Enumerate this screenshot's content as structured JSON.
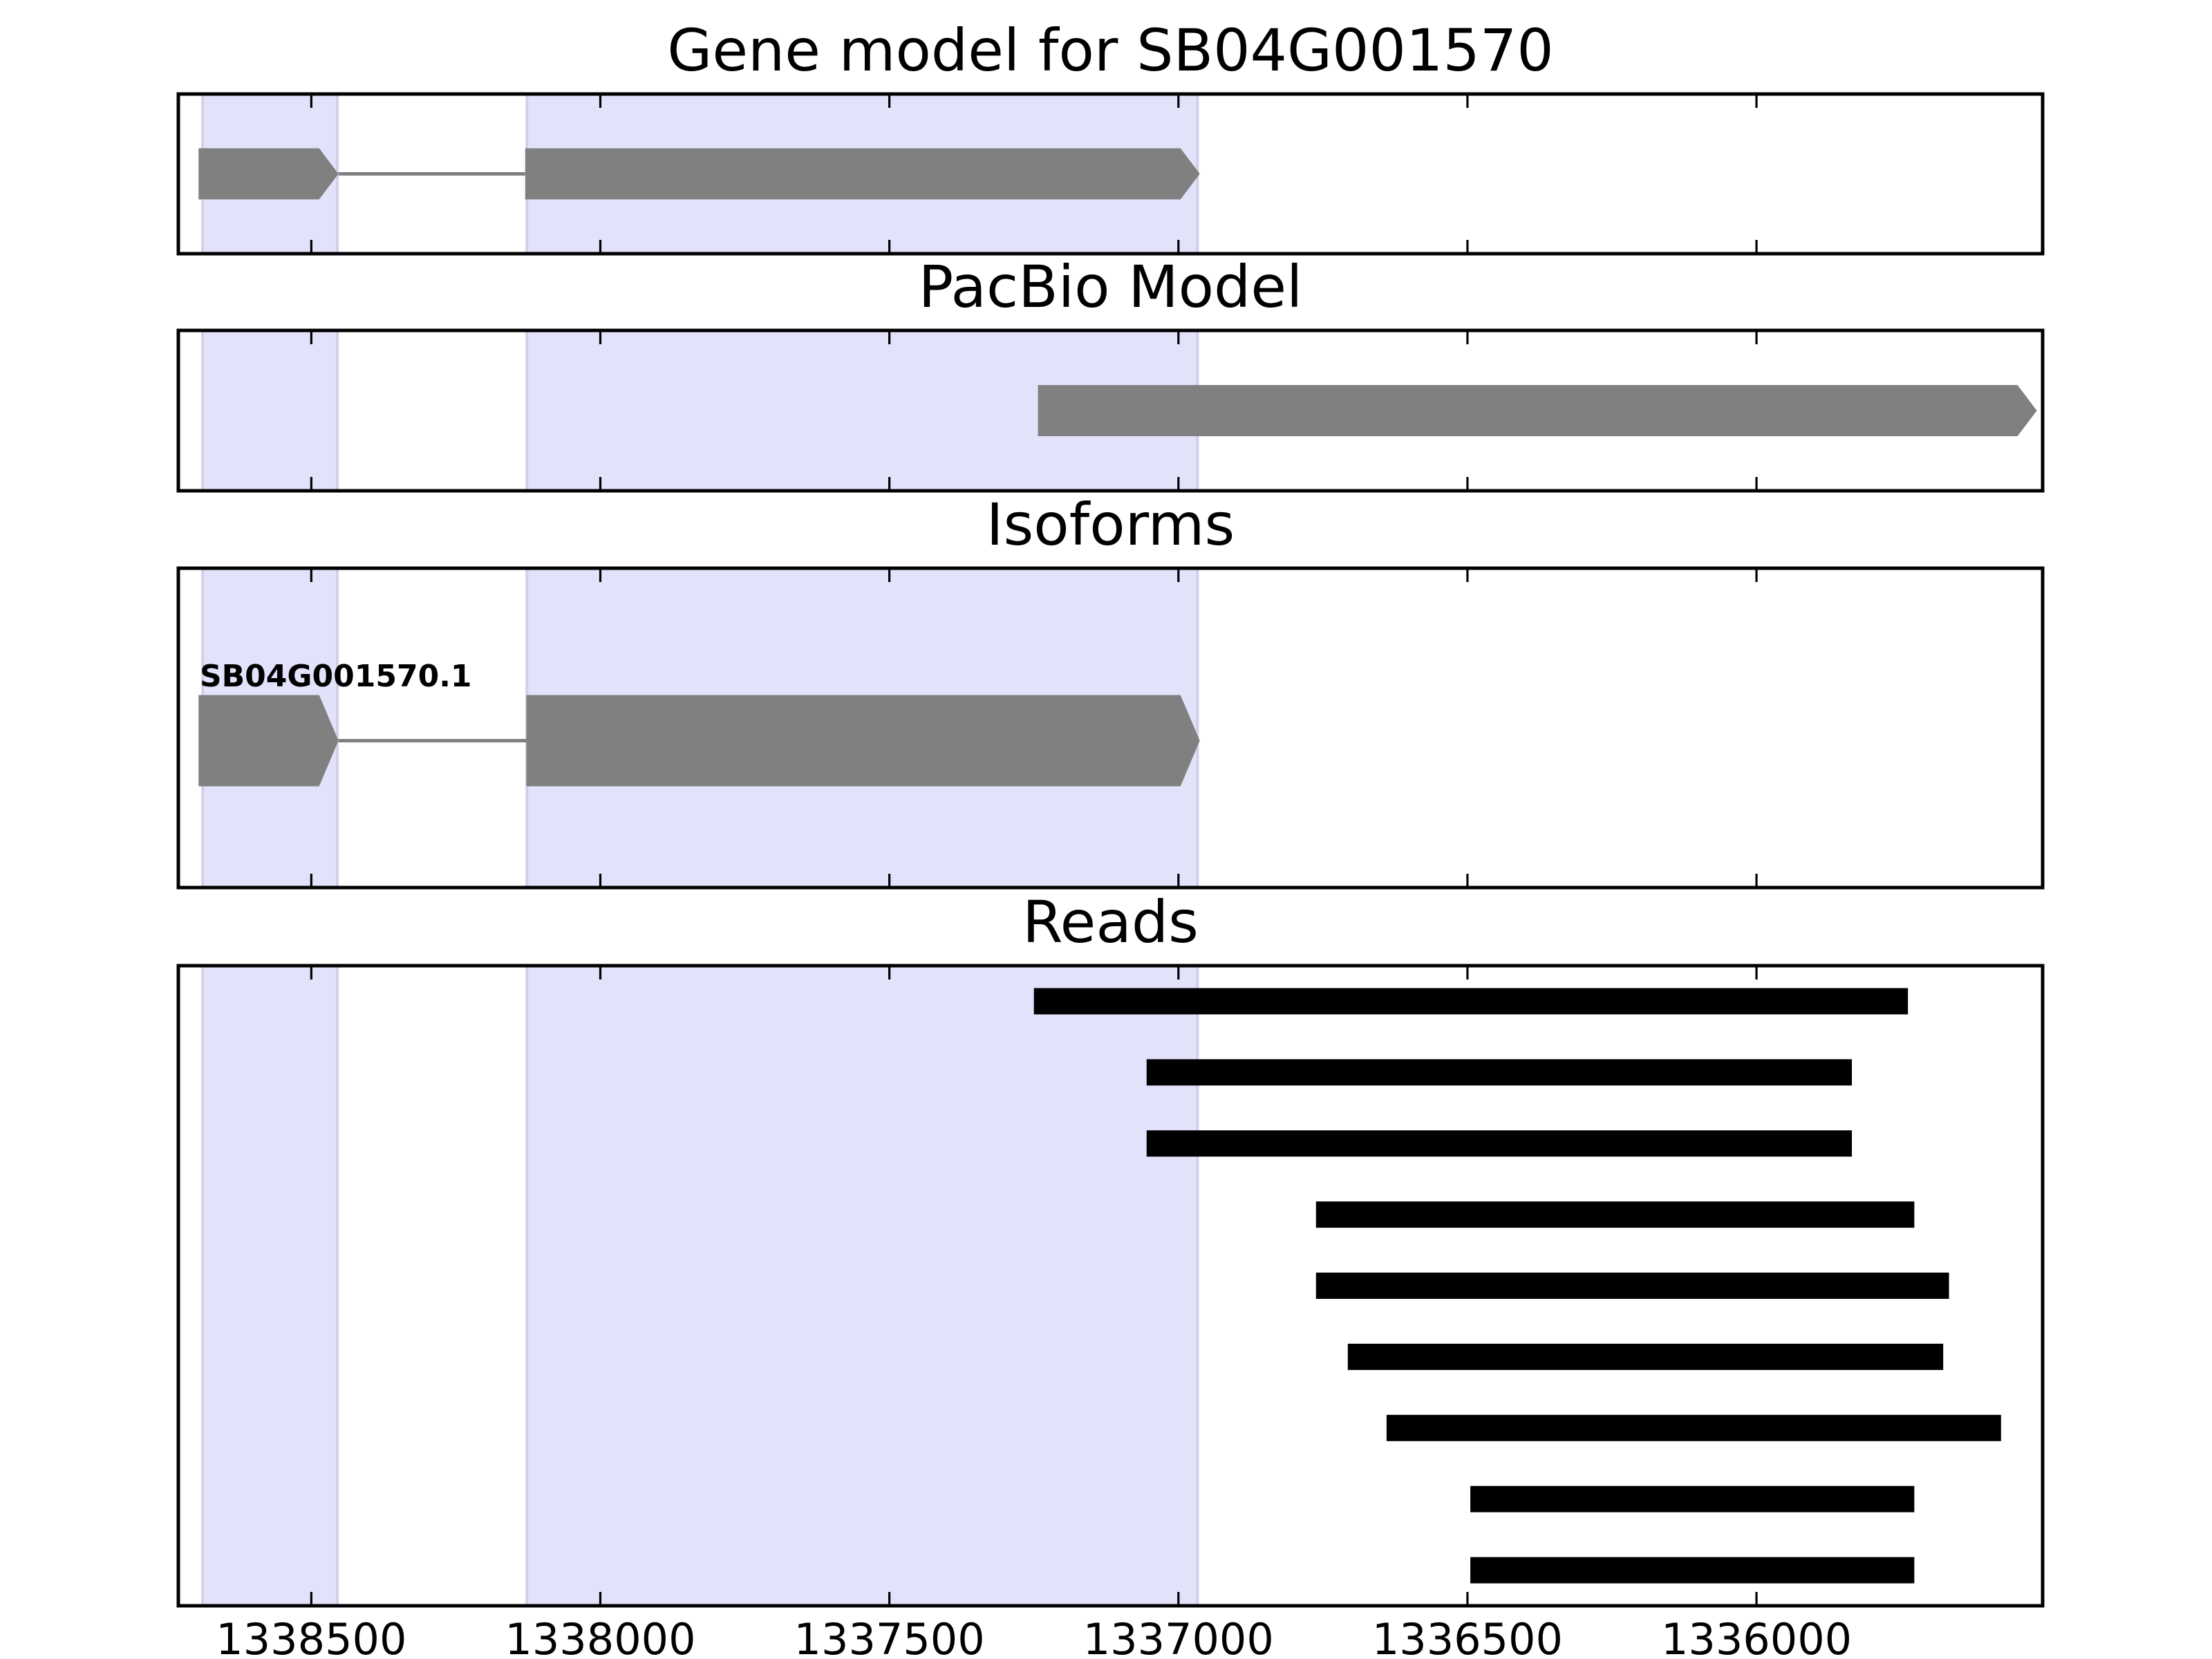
{
  "chart_data": {
    "type": "gene-track",
    "x_axis": {
      "reversed": true,
      "xlim": [
        1338730,
        1335505
      ],
      "ticks": [
        1338500,
        1338000,
        1337500,
        1337000,
        1336500,
        1336000
      ],
      "tick_labels": [
        "1338500",
        "1338000",
        "1337500",
        "1337000",
        "1336500",
        "1336000"
      ]
    },
    "exon_shading": [
      {
        "start": 1338688,
        "end": 1338455
      },
      {
        "start": 1338127,
        "end": 1336967
      }
    ],
    "panels": [
      {
        "id": "gene-model",
        "title": "Gene model for SB04G001570",
        "type": "gene",
        "features": [
          {
            "kind": "exon",
            "start": 1338695,
            "end": 1338453,
            "y": 0.5
          },
          {
            "kind": "intron",
            "start": 1338453,
            "end": 1338130,
            "y": 0.5
          },
          {
            "kind": "exon",
            "start": 1338130,
            "end": 1336963,
            "y": 0.5
          }
        ],
        "labels": []
      },
      {
        "id": "pacbio-model",
        "title": "PacBio Model",
        "type": "gene",
        "features": [
          {
            "kind": "exon",
            "start": 1337243,
            "end": 1335515,
            "y": 0.5
          }
        ],
        "labels": []
      },
      {
        "id": "isoforms",
        "title": "Isoforms",
        "type": "gene",
        "features": [
          {
            "kind": "exon",
            "start": 1338695,
            "end": 1338453,
            "y": 0.54
          },
          {
            "kind": "intron",
            "start": 1338453,
            "end": 1338128,
            "y": 0.54
          },
          {
            "kind": "exon",
            "start": 1338128,
            "end": 1336963,
            "y": 0.54
          }
        ],
        "labels": [
          {
            "text": "SB04G001570.1",
            "x": 1338693,
            "y": 0.37
          }
        ]
      },
      {
        "id": "reads",
        "title": "Reads",
        "type": "reads",
        "reads": [
          {
            "start": 1337250,
            "end": 1335738
          },
          {
            "start": 1337055,
            "end": 1335835
          },
          {
            "start": 1337055,
            "end": 1335835
          },
          {
            "start": 1336762,
            "end": 1335727
          },
          {
            "start": 1336762,
            "end": 1335667
          },
          {
            "start": 1336707,
            "end": 1335677
          },
          {
            "start": 1336640,
            "end": 1335577
          },
          {
            "start": 1336495,
            "end": 1335727
          },
          {
            "start": 1336495,
            "end": 1335727
          }
        ]
      }
    ]
  },
  "colors": {
    "exon": "#808080",
    "intron": "#808080",
    "read": "#000000",
    "shading": "#e2e2fb",
    "shading_edge": "#d0d0ea"
  }
}
